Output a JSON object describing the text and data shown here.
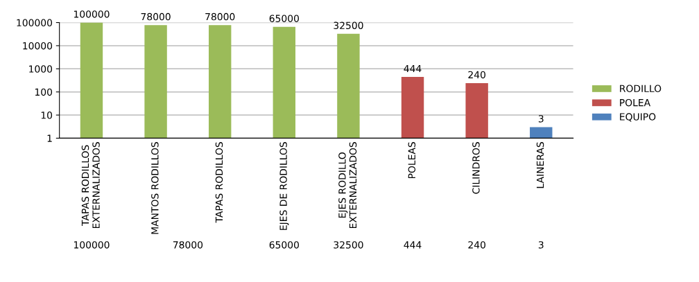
{
  "chart_data": {
    "type": "bar",
    "categories": [
      "TAPAS RODILLOS\nEXTERNALIZADOS",
      "MANTOS RODILLOS",
      "TAPAS RODILLOS",
      "EJES DE RODILLOS",
      "EJES RODILLO\nEXTERNALIZADOS",
      "POLEAS",
      "CILINDROS",
      "LAINERAS"
    ],
    "series": [
      {
        "name": "EQUIPO",
        "color": "#4f81bd",
        "values": [
          null,
          null,
          null,
          null,
          null,
          null,
          null,
          3
        ]
      },
      {
        "name": "POLEA",
        "color": "#c0504d",
        "values": [
          null,
          null,
          null,
          null,
          null,
          444,
          240,
          null
        ]
      },
      {
        "name": "RODILLO",
        "color": "#9bbb59",
        "values": [
          100000,
          78000,
          78000,
          65000,
          32500,
          null,
          null,
          null
        ]
      }
    ],
    "annotations": [
      "100000",
      "78000",
      "65000",
      "32500",
      "444",
      "240",
      "3"
    ],
    "log": "y",
    "ylim": [
      1,
      100000
    ],
    "yticks": [
      1,
      10,
      100,
      1000,
      10000,
      100000
    ],
    "grid": "y",
    "legend": "right",
    "data_labels": true
  }
}
